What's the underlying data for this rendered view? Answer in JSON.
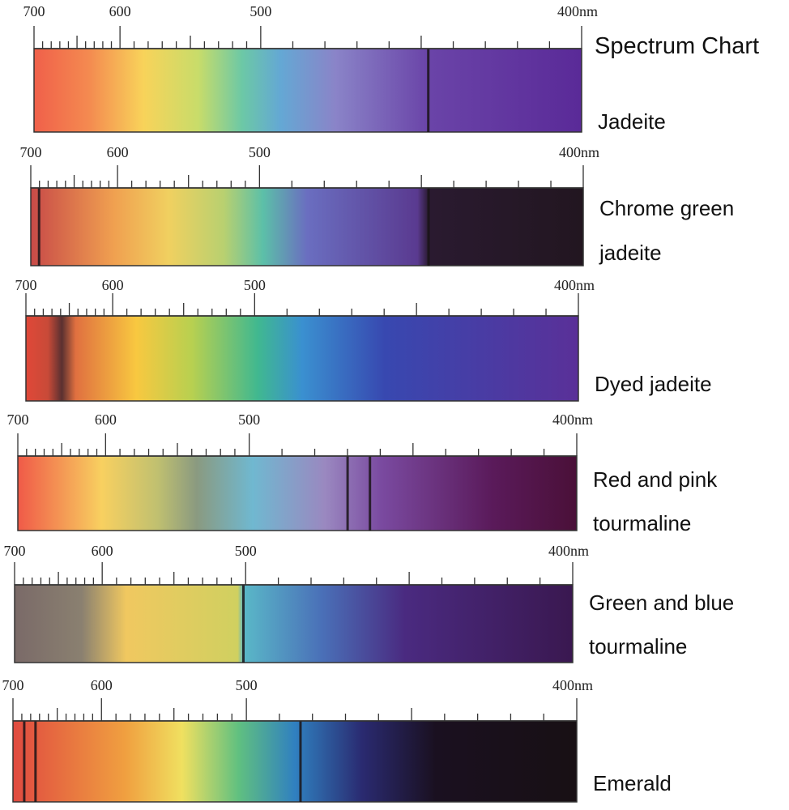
{
  "title": "Spectrum Chart",
  "panels": [
    {
      "name": [
        "Jadeite"
      ],
      "scale": [
        "700",
        "600",
        "500",
        "400nm"
      ]
    },
    {
      "name": [
        "Chrome green",
        "jadeite"
      ],
      "scale": [
        "700",
        "600",
        "500",
        "400nm"
      ]
    },
    {
      "name": [
        "Dyed jadeite"
      ],
      "scale": [
        "700",
        "600",
        "500",
        "400nm"
      ]
    },
    {
      "name": [
        "Red and pink",
        "tourmaline"
      ],
      "scale": [
        "700",
        "600",
        "500",
        "400nm"
      ]
    },
    {
      "name": [
        "Green and blue",
        "tourmaline"
      ],
      "scale": [
        "700",
        "600",
        "500",
        "400nm"
      ]
    },
    {
      "name": [
        "Emerald"
      ],
      "scale": [
        "700",
        "600",
        "500",
        "400nm"
      ]
    }
  ]
}
